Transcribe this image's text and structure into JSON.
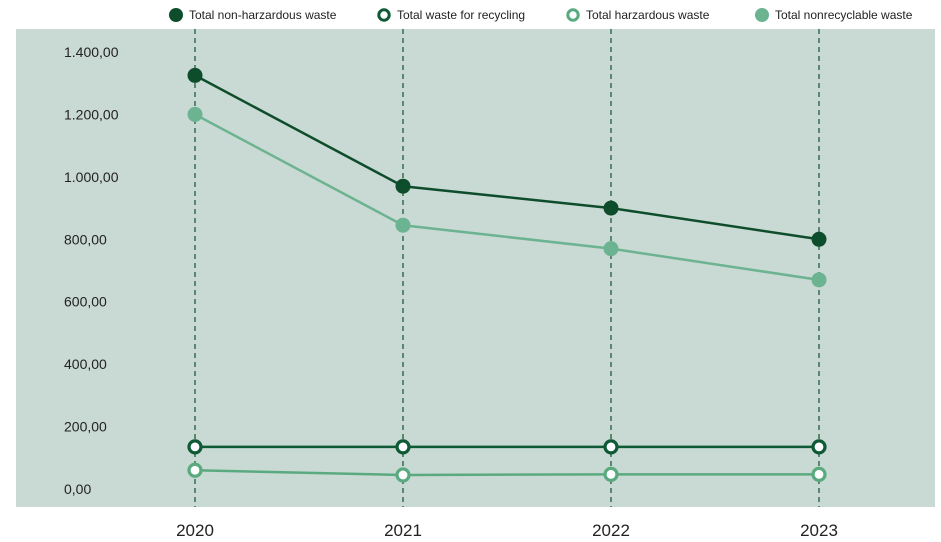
{
  "chart_data": {
    "type": "line",
    "categories": [
      "2020",
      "2021",
      "2022",
      "2023"
    ],
    "yticks": [
      "0,00",
      "200,00",
      "400,00",
      "600,00",
      "800,00",
      "1.000,00",
      "1.200,00",
      "1.400,00"
    ],
    "ylim": [
      0,
      1450
    ],
    "grid": "vertical dashed",
    "legend_position": "top",
    "background_color": "#c9d9d3",
    "series": [
      {
        "name": "Total non-harzardous waste",
        "values": [
          1325,
          970,
          900,
          800
        ],
        "color": "#0e4d2c",
        "marker": "filled"
      },
      {
        "name": "Total waste for recycling",
        "values": [
          135,
          135,
          135,
          135
        ],
        "color": "#0e5a36",
        "marker": "hollow"
      },
      {
        "name": "Total harzardous waste",
        "values": [
          60,
          45,
          47,
          47
        ],
        "color": "#5aaa80",
        "marker": "hollow"
      },
      {
        "name": "Total nonrecyclable waste",
        "values": [
          1200,
          845,
          770,
          670
        ],
        "color": "#6cb392",
        "marker": "filled"
      }
    ]
  }
}
